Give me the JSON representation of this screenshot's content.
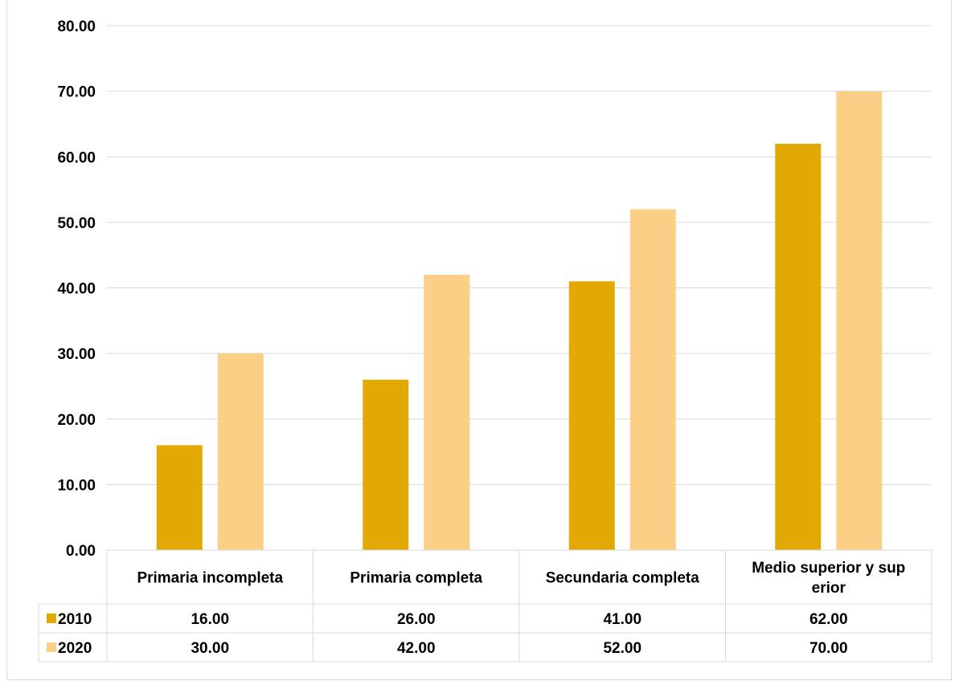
{
  "chart_data": {
    "type": "bar",
    "categories": [
      "Primaria incompleta",
      "Primaria completa",
      "Secundaria completa",
      "Medio superior y superior"
    ],
    "category_label_lines": [
      [
        "Primaria incompleta"
      ],
      [
        "Primaria completa"
      ],
      [
        "Secundaria completa"
      ],
      [
        "Medio superior y sup",
        "erior"
      ]
    ],
    "series": [
      {
        "name": "2010",
        "values": [
          16.0,
          26.0,
          41.0,
          62.0
        ],
        "color": "#e2a905"
      },
      {
        "name": "2020",
        "values": [
          30.0,
          42.0,
          52.0,
          70.0
        ],
        "color": "#fccf86"
      }
    ],
    "table": [
      {
        "series": "2010",
        "cells": [
          "16.00",
          "26.00",
          "41.00",
          "62.00"
        ]
      },
      {
        "series": "2020",
        "cells": [
          "30.00",
          "42.00",
          "52.00",
          "70.00"
        ]
      }
    ],
    "ylim": [
      0,
      80
    ],
    "yticks": [
      "0.00",
      "10.00",
      "20.00",
      "30.00",
      "40.00",
      "50.00",
      "60.00",
      "70.00",
      "80.00"
    ],
    "grid": true,
    "legend": "data-table",
    "gridline_color": "#d9d9d9"
  }
}
